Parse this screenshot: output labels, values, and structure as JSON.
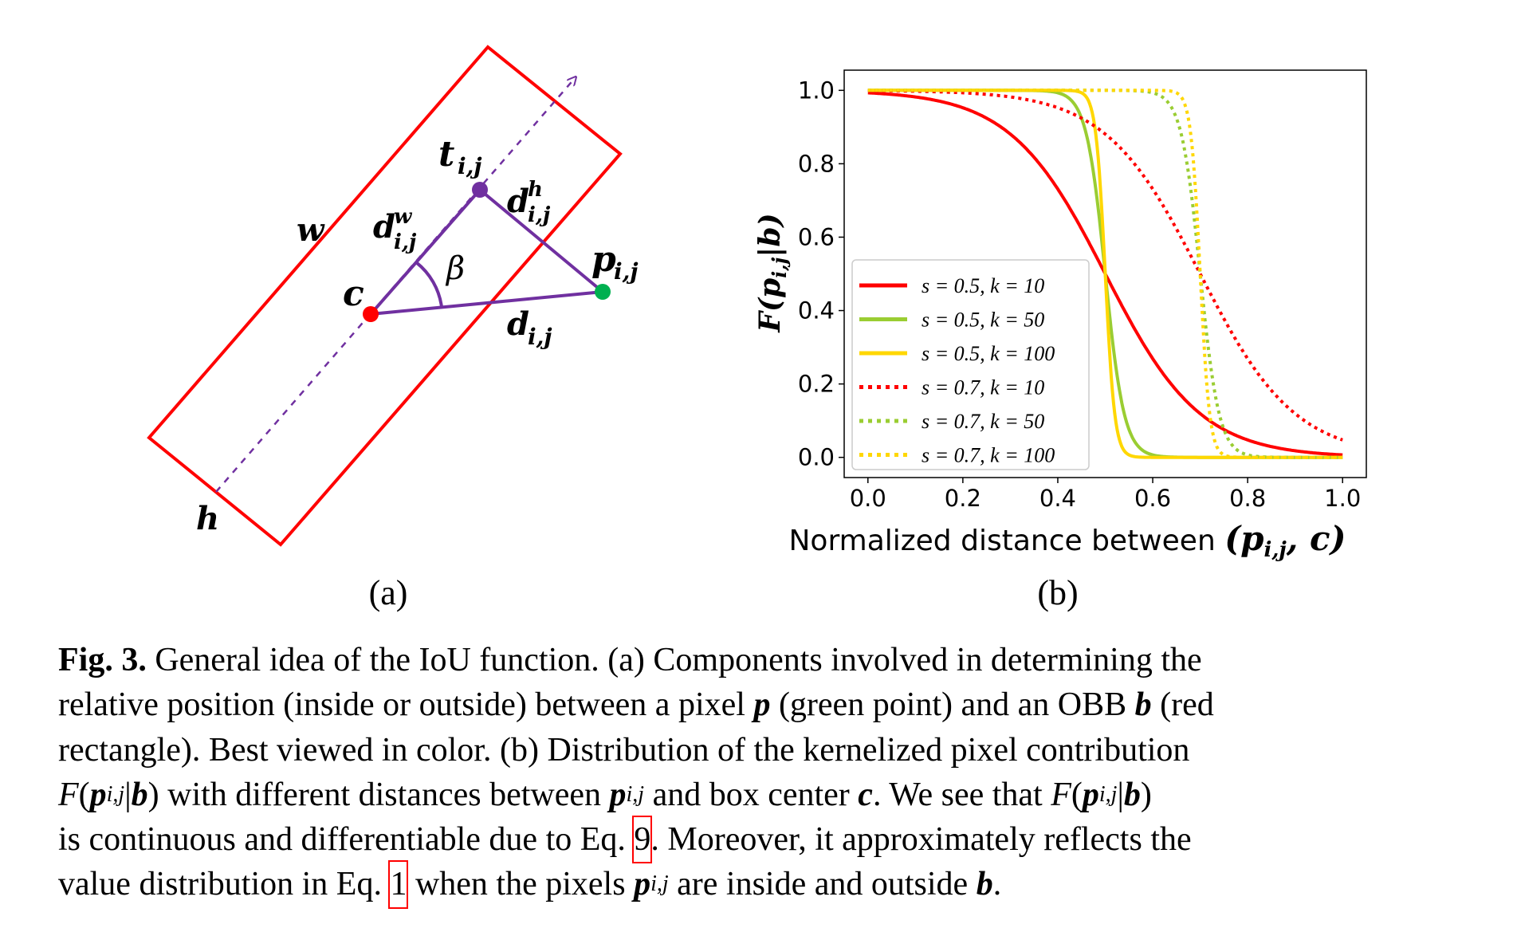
{
  "panel_a": {
    "label": "(a)",
    "labels": {
      "w": "w",
      "h": "h",
      "c": "c",
      "t": "t",
      "t_sub": "i,j",
      "dw": "d",
      "dw_sup": "w",
      "dw_sub": "i,j",
      "dh": "d",
      "dh_sup": "h",
      "dh_sub": "i,j",
      "beta": "β",
      "p": "p",
      "p_sub": "i,j",
      "d": "d",
      "d_sub": "i,j"
    },
    "colors": {
      "box": "#ff0000",
      "lines": "#7030a0",
      "center": "#ff0000",
      "pixel": "#00b050",
      "target": "#7030a0"
    }
  },
  "panel_b": {
    "label": "(b)"
  },
  "chart_data": {
    "type": "line",
    "title": "",
    "xlabel": "Normalized distance between (p_{i,j}, c)",
    "xlabel_text": "Normalized distance between ",
    "xlabel_math": "(p",
    "xlabel_sub": "i,j",
    "xlabel_math2": ", c)",
    "ylabel": "F(p_{i,j}|b)",
    "ylabel_math": "F(p",
    "ylabel_sub": "i,j",
    "ylabel_math2": "|b)",
    "xlim": [
      -0.05,
      1.05
    ],
    "ylim": [
      -0.055,
      1.055
    ],
    "xticks": [
      "0.0",
      "0.2",
      "0.4",
      "0.6",
      "0.8",
      "1.0"
    ],
    "yticks": [
      "0.0",
      "0.2",
      "0.4",
      "0.6",
      "0.8",
      "1.0"
    ],
    "grid": false,
    "legend_position": "lower-left",
    "x": [
      0.0,
      0.1,
      0.2,
      0.3,
      0.4,
      0.5,
      0.6,
      0.7,
      0.8,
      0.9,
      1.0
    ],
    "series": [
      {
        "name": "s = 0.5, k = 10",
        "s": 0.5,
        "k": 10,
        "color": "#ff0000",
        "style": "solid",
        "values": [
          0.993,
          0.982,
          0.953,
          0.881,
          0.731,
          0.5,
          0.269,
          0.119,
          0.047,
          0.018,
          0.007
        ]
      },
      {
        "name": "s = 0.5, k = 50",
        "s": 0.5,
        "k": 50,
        "color": "#9acd32",
        "style": "solid",
        "values": [
          1.0,
          1.0,
          1.0,
          1.0,
          0.993,
          0.5,
          0.007,
          0.0,
          0.0,
          0.0,
          0.0
        ]
      },
      {
        "name": "s = 0.5, k = 100",
        "s": 0.5,
        "k": 100,
        "color": "#ffd700",
        "style": "solid",
        "values": [
          1.0,
          1.0,
          1.0,
          1.0,
          1.0,
          0.5,
          0.0,
          0.0,
          0.0,
          0.0,
          0.0
        ]
      },
      {
        "name": "s = 0.7, k = 10",
        "s": 0.7,
        "k": 10,
        "color": "#ff0000",
        "style": "dotted",
        "values": [
          0.999,
          0.998,
          0.993,
          0.982,
          0.953,
          0.881,
          0.731,
          0.5,
          0.269,
          0.119,
          0.047
        ]
      },
      {
        "name": "s = 0.7, k = 50",
        "s": 0.7,
        "k": 50,
        "color": "#9acd32",
        "style": "dotted",
        "values": [
          1.0,
          1.0,
          1.0,
          1.0,
          1.0,
          1.0,
          0.993,
          0.5,
          0.007,
          0.0,
          0.0
        ]
      },
      {
        "name": "s = 0.7, k = 100",
        "s": 0.7,
        "k": 100,
        "color": "#ffd700",
        "style": "dotted",
        "values": [
          1.0,
          1.0,
          1.0,
          1.0,
          1.0,
          1.0,
          1.0,
          0.5,
          0.0,
          0.0,
          0.0
        ]
      }
    ]
  },
  "caption": {
    "lines": [
      [
        {
          "t": "Fig. 3.",
          "c": "b"
        },
        {
          "t": " General idea of the IoU function. (a) Components involved in determining the",
          "c": ""
        }
      ],
      [
        {
          "t": "relative position (inside or outside) between a pixel ",
          "c": ""
        },
        {
          "t": "p",
          "c": "bi"
        },
        {
          "t": " (green point) and an OBB ",
          "c": ""
        },
        {
          "t": "b",
          "c": "bi"
        },
        {
          "t": " (red",
          "c": ""
        }
      ],
      [
        {
          "t": "rectangle). Best viewed in color. (b) Distribution of the kernelized pixel contribution",
          "c": ""
        }
      ],
      [
        {
          "t": "F",
          "c": "i"
        },
        {
          "t": "(",
          "c": ""
        },
        {
          "t": "p",
          "c": "bi"
        },
        {
          "t": "i,j",
          "c": "i sub"
        },
        {
          "t": "|",
          "c": ""
        },
        {
          "t": "b",
          "c": "bi"
        },
        {
          "t": ") with different distances between ",
          "c": ""
        },
        {
          "t": "p",
          "c": "bi"
        },
        {
          "t": "i,j",
          "c": "i sub"
        },
        {
          "t": " and box center ",
          "c": ""
        },
        {
          "t": "c",
          "c": "bi"
        },
        {
          "t": ". We see that ",
          "c": ""
        },
        {
          "t": "F",
          "c": "i"
        },
        {
          "t": "(",
          "c": ""
        },
        {
          "t": "p",
          "c": "bi"
        },
        {
          "t": "i,j",
          "c": "i sub"
        },
        {
          "t": "|",
          "c": ""
        },
        {
          "t": "b",
          "c": "bi"
        },
        {
          "t": ")",
          "c": ""
        }
      ],
      [
        {
          "t": "is continuous and differentiable due to Eq. ",
          "c": ""
        },
        {
          "t": "9",
          "c": "ref"
        },
        {
          "t": ". Moreover, it approximately reflects the",
          "c": ""
        }
      ],
      [
        {
          "t": "value distribution in Eq. ",
          "c": ""
        },
        {
          "t": "1",
          "c": "ref"
        },
        {
          "t": " when the pixels ",
          "c": ""
        },
        {
          "t": "p",
          "c": "bi"
        },
        {
          "t": "i,j",
          "c": "i sub"
        },
        {
          "t": " are inside and outside ",
          "c": ""
        },
        {
          "t": "b",
          "c": "bi"
        },
        {
          "t": ".",
          "c": ""
        }
      ]
    ]
  }
}
